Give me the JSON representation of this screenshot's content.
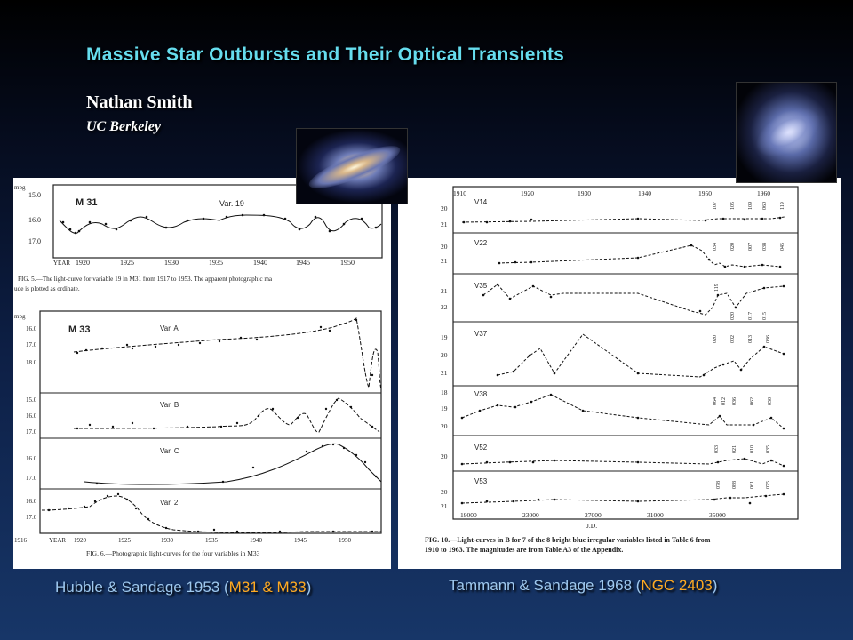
{
  "slide": {
    "title": "Massive Star Outbursts and Their Optical Transients",
    "author": "Nathan Smith",
    "affiliation": "UC Berkeley"
  },
  "captions": {
    "left": {
      "prefix": "Hubble & Sandage 1953 (",
      "highlight": "M31 & M33",
      "suffix": ")"
    },
    "right": {
      "prefix": "Tammann & Sandage 1968 (",
      "highlight": "NGC 2403",
      "suffix": ")"
    }
  },
  "images": {
    "m31_photo": {
      "icon": "andromeda-galaxy-photo"
    },
    "ngc2403_photo": {
      "icon": "spiral-galaxy-photo"
    }
  },
  "figure_m31": {
    "galaxy": "M 31",
    "variable": "Var. 19",
    "ylabel": "mpg",
    "yticks": [
      "15.0",
      "16.0",
      "17.0"
    ],
    "xlabel": "YEAR",
    "xticks": [
      "1920",
      "1925",
      "1930",
      "1935",
      "1940",
      "1945",
      "1950"
    ],
    "caption_line1": "FIG. 5.—The light-curve for variable 19 in M31 from 1917 to 1953. The apparent photographic ma",
    "caption_line2": "ude is plotted as ordinate."
  },
  "figure_m33": {
    "galaxy": "M 33",
    "ylabel": "mpg",
    "panels": [
      {
        "label": "Var. A",
        "yticks": [
          "16.0",
          "17.0",
          "18.0"
        ]
      },
      {
        "label": "Var. B",
        "yticks": [
          "15.0",
          "16.0",
          "17.0"
        ]
      },
      {
        "label": "Var. C",
        "yticks": [
          "16.0",
          "17.0"
        ]
      },
      {
        "label": "Var. 2",
        "yticks": [
          "16.0",
          "17.0"
        ]
      }
    ],
    "xlabel": "YEAR",
    "xticks": [
      "1916",
      "1920",
      "1925",
      "1930",
      "1935",
      "1940",
      "1945",
      "1950"
    ],
    "caption": "FIG. 6.—Photographic light-curves for the four variables in M33"
  },
  "figure_ngc2403": {
    "top_ticks": [
      "1910",
      "1920",
      "1930",
      "1940",
      "1950",
      "1960"
    ],
    "panels": [
      {
        "label": "V14",
        "yticks": [
          "20",
          "21"
        ],
        "marks": [
          "107",
          "105",
          "109",
          "060",
          "119"
        ]
      },
      {
        "label": "V22",
        "yticks": [
          "20",
          "21"
        ],
        "marks": [
          "034",
          "020",
          "007",
          "038",
          "045"
        ]
      },
      {
        "label": "V35",
        "yticks": [
          "21",
          "22"
        ],
        "marks": [
          "119",
          "020",
          "017",
          "015"
        ]
      },
      {
        "label": "V37",
        "yticks": [
          "19",
          "20",
          "21"
        ],
        "marks": [
          "020",
          "002",
          "013",
          "036"
        ]
      },
      {
        "label": "V38",
        "yticks": [
          "18",
          "19",
          "20"
        ],
        "marks": [
          "064",
          "012",
          "036",
          "062",
          "050"
        ]
      },
      {
        "label": "V52",
        "yticks": [
          "20"
        ],
        "marks": [
          "033",
          "021",
          "010",
          "035"
        ]
      },
      {
        "label": "V53",
        "yticks": [
          "20",
          "21"
        ],
        "marks": [
          "078",
          "088",
          "061",
          "075"
        ]
      }
    ],
    "bottom_ticks": [
      "19000",
      "23000",
      "27000",
      "31000",
      "35000"
    ],
    "xlabel": "J.D.",
    "caption_line1": "FIG. 10.—Light-curves in B for 7 of the 8 bright blue irregular variables listed in Table 6 from",
    "caption_line2": "1910 to 1963. The magnitudes are from Table A3 of the Appendix."
  }
}
